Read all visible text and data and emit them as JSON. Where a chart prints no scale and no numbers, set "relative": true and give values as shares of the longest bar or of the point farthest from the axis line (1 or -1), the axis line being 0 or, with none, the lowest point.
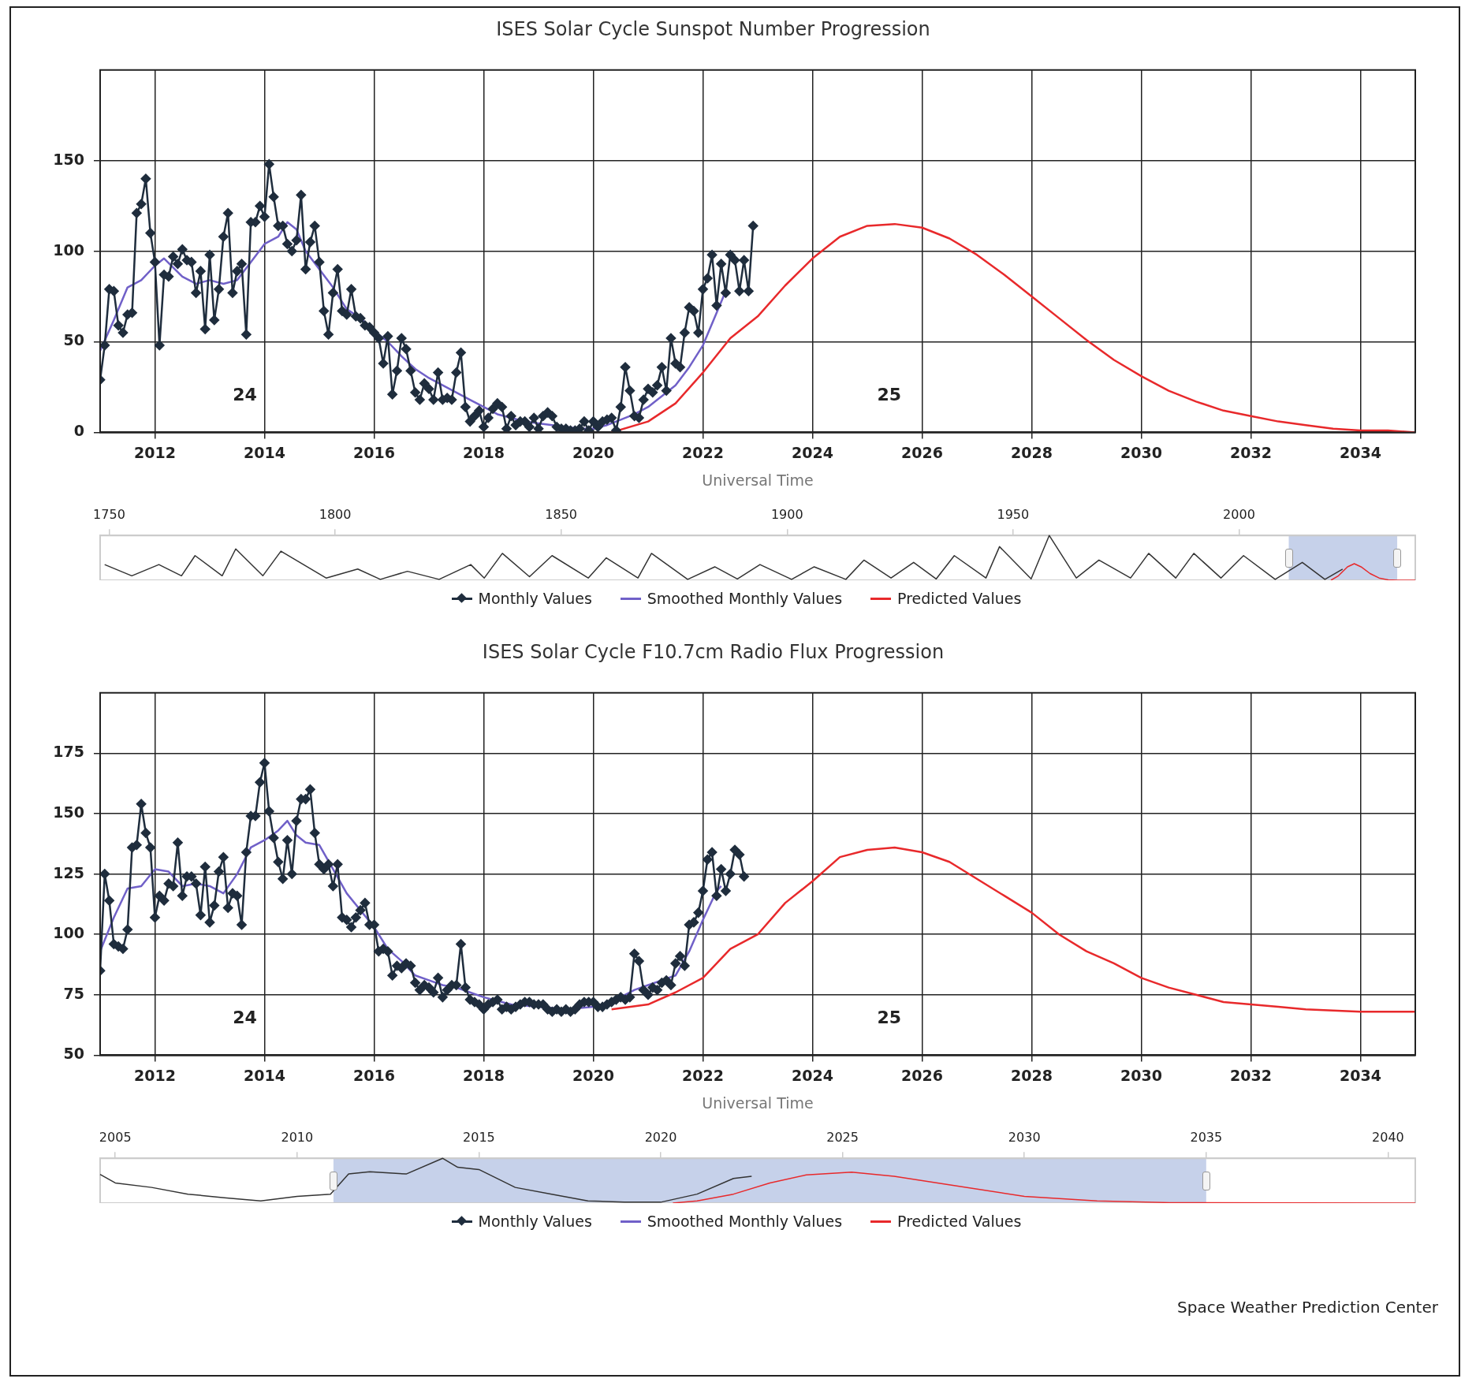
{
  "chart_data": [
    {
      "type": "line",
      "title": "ISES Solar Cycle Sunspot Number Progression",
      "xlabel": "Universal Time",
      "xlim": [
        "2011",
        "2035"
      ],
      "xticks": [
        "2012",
        "2014",
        "2016",
        "2018",
        "2020",
        "2022",
        "2024",
        "2026",
        "2028",
        "2030",
        "2032",
        "2034"
      ],
      "ylim": [
        0,
        200
      ],
      "yticks": [
        0,
        50,
        100,
        150
      ],
      "grid": true,
      "legend": "bottom",
      "annotations": [
        "24",
        "25"
      ],
      "series": [
        {
          "name": "Monthly Values",
          "color": "#1f2d3d",
          "marker": "diamond",
          "x": [
            "2011-01",
            "2011-02",
            "2011-03",
            "2011-04",
            "2011-05",
            "2011-06",
            "2011-07",
            "2011-08",
            "2011-09",
            "2011-10",
            "2011-11",
            "2011-12",
            "2012-01",
            "2012-02",
            "2012-03",
            "2012-04",
            "2012-05",
            "2012-06",
            "2012-07",
            "2012-08",
            "2012-09",
            "2012-10",
            "2012-11",
            "2012-12",
            "2013-01",
            "2013-02",
            "2013-03",
            "2013-04",
            "2013-05",
            "2013-06",
            "2013-07",
            "2013-08",
            "2013-09",
            "2013-10",
            "2013-11",
            "2013-12",
            "2014-01",
            "2014-02",
            "2014-03",
            "2014-04",
            "2014-05",
            "2014-06",
            "2014-07",
            "2014-08",
            "2014-09",
            "2014-10",
            "2014-11",
            "2014-12",
            "2015-01",
            "2015-02",
            "2015-03",
            "2015-04",
            "2015-05",
            "2015-06",
            "2015-07",
            "2015-08",
            "2015-09",
            "2015-10",
            "2015-11",
            "2015-12",
            "2016-01",
            "2016-02",
            "2016-03",
            "2016-04",
            "2016-05",
            "2016-06",
            "2016-07",
            "2016-08",
            "2016-09",
            "2016-10",
            "2016-11",
            "2016-12",
            "2017-01",
            "2017-02",
            "2017-03",
            "2017-04",
            "2017-05",
            "2017-06",
            "2017-07",
            "2017-08",
            "2017-09",
            "2017-10",
            "2017-11",
            "2017-12",
            "2018-01",
            "2018-02",
            "2018-03",
            "2018-04",
            "2018-05",
            "2018-06",
            "2018-07",
            "2018-08",
            "2018-09",
            "2018-10",
            "2018-11",
            "2018-12",
            "2019-01",
            "2019-02",
            "2019-03",
            "2019-04",
            "2019-05",
            "2019-06",
            "2019-07",
            "2019-08",
            "2019-09",
            "2019-10",
            "2019-11",
            "2019-12",
            "2020-01",
            "2020-02",
            "2020-03",
            "2020-04",
            "2020-05",
            "2020-06",
            "2020-07",
            "2020-08",
            "2020-09",
            "2020-10",
            "2020-11",
            "2020-12",
            "2021-01",
            "2021-02",
            "2021-03",
            "2021-04",
            "2021-05",
            "2021-06",
            "2021-07",
            "2021-08",
            "2021-09",
            "2021-10",
            "2021-11",
            "2021-12",
            "2022-01",
            "2022-02",
            "2022-03",
            "2022-04",
            "2022-05",
            "2022-06",
            "2022-07",
            "2022-08",
            "2022-09",
            "2022-10",
            "2022-11",
            "2022-12"
          ],
          "values": [
            29,
            48,
            79,
            78,
            59,
            55,
            65,
            66,
            121,
            126,
            140,
            110,
            94,
            48,
            87,
            86,
            97,
            93,
            101,
            95,
            94,
            77,
            89,
            57,
            98,
            62,
            79,
            108,
            121,
            77,
            89,
            93,
            54,
            116,
            116,
            125,
            119,
            148,
            130,
            114,
            114,
            104,
            100,
            106,
            131,
            90,
            105,
            114,
            94,
            67,
            54,
            77,
            90,
            67,
            65,
            79,
            64,
            63,
            59,
            58,
            55,
            52,
            38,
            53,
            21,
            34,
            52,
            46,
            34,
            22,
            18,
            27,
            24,
            18,
            33,
            18,
            19,
            18,
            33,
            44,
            14,
            6,
            9,
            12,
            3,
            8,
            13,
            16,
            14,
            2,
            9,
            4,
            6,
            6,
            3,
            8,
            2,
            9,
            11,
            9,
            3,
            2,
            2,
            1,
            1,
            2,
            6,
            1,
            6,
            3,
            6,
            7,
            8,
            1,
            14,
            36,
            23,
            9,
            8,
            18,
            24,
            22,
            26,
            36,
            23,
            52,
            38,
            36,
            55,
            69,
            67,
            55,
            79,
            85,
            98,
            70,
            93,
            77,
            98,
            95,
            78,
            95,
            78,
            114
          ]
        },
        {
          "name": "Smoothed Monthly Values",
          "color": "#7060c8",
          "x": [
            "2011-01",
            "2011-04",
            "2011-07",
            "2011-10",
            "2012-01",
            "2012-03",
            "2012-07",
            "2012-10",
            "2013-01",
            "2013-04",
            "2013-07",
            "2013-10",
            "2014-01",
            "2014-04",
            "2014-06",
            "2014-08",
            "2014-10",
            "2015-01",
            "2015-04",
            "2015-07",
            "2015-10",
            "2016-01",
            "2016-04",
            "2016-07",
            "2016-10",
            "2017-01",
            "2017-04",
            "2017-07",
            "2017-10",
            "2018-01",
            "2018-04",
            "2018-07",
            "2018-10",
            "2019-01",
            "2019-04",
            "2019-07",
            "2019-10",
            "2020-01",
            "2020-04",
            "2020-07",
            "2020-10",
            "2021-01",
            "2021-04",
            "2021-07",
            "2021-10",
            "2022-01",
            "2022-04",
            "2022-06"
          ],
          "values": [
            45,
            62,
            80,
            84,
            92,
            96,
            86,
            82,
            84,
            82,
            84,
            94,
            104,
            108,
            116,
            112,
            100,
            90,
            80,
            68,
            63,
            56,
            50,
            42,
            35,
            30,
            26,
            22,
            18,
            14,
            10,
            8,
            6,
            5,
            4,
            3,
            2,
            2,
            4,
            7,
            10,
            14,
            20,
            26,
            36,
            48,
            66,
            78
          ]
        },
        {
          "name": "Predicted Values",
          "color": "#e8292b",
          "x": [
            "2020-05",
            "2021-01",
            "2021-07",
            "2022-01",
            "2022-07",
            "2023-01",
            "2023-07",
            "2024-01",
            "2024-07",
            "2025-01",
            "2025-07",
            "2026-01",
            "2026-07",
            "2027-01",
            "2027-07",
            "2028-01",
            "2028-07",
            "2029-01",
            "2029-07",
            "2030-01",
            "2030-07",
            "2031-01",
            "2031-07",
            "2032-01",
            "2032-07",
            "2033-01",
            "2033-07",
            "2034-01",
            "2034-07",
            "2035-01"
          ],
          "values": [
            0,
            6,
            16,
            33,
            52,
            64,
            81,
            96,
            108,
            114,
            115,
            113,
            107,
            98,
            87,
            75,
            63,
            51,
            40,
            31,
            23,
            17,
            12,
            9,
            6,
            4,
            2,
            1,
            1,
            0
          ]
        }
      ]
    },
    {
      "type": "line",
      "relative": true,
      "tick_labels": "x",
      "xlim": [
        "1748",
        "2039"
      ],
      "xticks": [
        "1750",
        "1800",
        "1850",
        "1900",
        "1950",
        "2000"
      ],
      "legend": false,
      "bands": [
        {
          "axis": "x",
          "from": "2011",
          "to": "2035",
          "color": "#c6d1ea"
        }
      ],
      "series": [
        {
          "color": "#333333",
          "x": [
            "1749",
            "1755",
            "1761",
            "1766",
            "1769",
            "1775",
            "1778",
            "1784",
            "1788",
            "1798",
            "1805",
            "1810",
            "1816",
            "1823",
            "1830",
            "1833",
            "1837",
            "1843",
            "1848",
            "1856",
            "1860",
            "1867",
            "1870",
            "1878",
            "1884",
            "1889",
            "1894",
            "1901",
            "1906",
            "1913",
            "1917",
            "1923",
            "1928",
            "1933",
            "1937",
            "1944",
            "1947",
            "1954",
            "1958",
            "1964",
            "1969",
            "1976",
            "1980",
            "1986",
            "1990",
            "1996",
            "2001",
            "2008",
            "2014",
            "2019",
            "2022-12"
          ],
          "values": [
            0.35,
            0.1,
            0.35,
            0.1,
            0.55,
            0.1,
            0.7,
            0.1,
            0.65,
            0.05,
            0.25,
            0.02,
            0.2,
            0.02,
            0.35,
            0.05,
            0.6,
            0.08,
            0.55,
            0.05,
            0.5,
            0.05,
            0.6,
            0.02,
            0.3,
            0.03,
            0.35,
            0.02,
            0.3,
            0.02,
            0.45,
            0.05,
            0.4,
            0.03,
            0.55,
            0.05,
            0.75,
            0.03,
            1,
            0.05,
            0.45,
            0.05,
            0.6,
            0.05,
            0.6,
            0.05,
            0.55,
            0.02,
            0.4,
            0.02,
            0.25
          ]
        },
        {
          "color": "#e8292b",
          "x": [
            "2020-05",
            "2022",
            "2024",
            "2025-07",
            "2027",
            "2029",
            "2031",
            "2033",
            "2035",
            "2039"
          ],
          "values": [
            0,
            0.1,
            0.3,
            0.37,
            0.3,
            0.15,
            0.05,
            0.01,
            0,
            0
          ]
        }
      ]
    },
    {
      "type": "line",
      "title": "ISES Solar Cycle F10.7cm Radio Flux Progression",
      "xlabel": "Universal Time",
      "xlim": [
        "2011",
        "2035"
      ],
      "xticks": [
        "2012",
        "2014",
        "2016",
        "2018",
        "2020",
        "2022",
        "2024",
        "2026",
        "2028",
        "2030",
        "2032",
        "2034"
      ],
      "ylim": [
        50,
        200
      ],
      "yticks": [
        50,
        75,
        100,
        125,
        150,
        175
      ],
      "grid": true,
      "legend": "bottom",
      "annotations": [
        "24",
        "25"
      ],
      "series": [
        {
          "name": "Monthly Values",
          "color": "#1f2d3d",
          "marker": "diamond",
          "x": [
            "2011-01",
            "2011-02",
            "2011-03",
            "2011-04",
            "2011-05",
            "2011-06",
            "2011-07",
            "2011-08",
            "2011-09",
            "2011-10",
            "2011-11",
            "2011-12",
            "2012-01",
            "2012-02",
            "2012-03",
            "2012-04",
            "2012-05",
            "2012-06",
            "2012-07",
            "2012-08",
            "2012-09",
            "2012-10",
            "2012-11",
            "2012-12",
            "2013-01",
            "2013-02",
            "2013-03",
            "2013-04",
            "2013-05",
            "2013-06",
            "2013-07",
            "2013-08",
            "2013-09",
            "2013-10",
            "2013-11",
            "2013-12",
            "2014-01",
            "2014-02",
            "2014-03",
            "2014-04",
            "2014-05",
            "2014-06",
            "2014-07",
            "2014-08",
            "2014-09",
            "2014-10",
            "2014-11",
            "2014-12",
            "2015-01",
            "2015-02",
            "2015-03",
            "2015-04",
            "2015-05",
            "2015-06",
            "2015-07",
            "2015-08",
            "2015-09",
            "2015-10",
            "2015-11",
            "2015-12",
            "2016-01",
            "2016-02",
            "2016-03",
            "2016-04",
            "2016-05",
            "2016-06",
            "2016-07",
            "2016-08",
            "2016-09",
            "2016-10",
            "2016-11",
            "2016-12",
            "2017-01",
            "2017-02",
            "2017-03",
            "2017-04",
            "2017-05",
            "2017-06",
            "2017-07",
            "2017-08",
            "2017-09",
            "2017-10",
            "2017-11",
            "2017-12",
            "2018-01",
            "2018-02",
            "2018-03",
            "2018-04",
            "2018-05",
            "2018-06",
            "2018-07",
            "2018-08",
            "2018-09",
            "2018-10",
            "2018-11",
            "2018-12",
            "2019-01",
            "2019-02",
            "2019-03",
            "2019-04",
            "2019-05",
            "2019-06",
            "2019-07",
            "2019-08",
            "2019-09",
            "2019-10",
            "2019-11",
            "2019-12",
            "2020-01",
            "2020-02",
            "2020-03",
            "2020-04",
            "2020-05",
            "2020-06",
            "2020-07",
            "2020-08",
            "2020-09",
            "2020-10",
            "2020-11",
            "2020-12",
            "2021-01",
            "2021-02",
            "2021-03",
            "2021-04",
            "2021-05",
            "2021-06",
            "2021-07",
            "2021-08",
            "2021-09",
            "2021-10",
            "2021-11",
            "2021-12",
            "2022-01",
            "2022-02",
            "2022-03",
            "2022-04",
            "2022-05",
            "2022-06",
            "2022-07",
            "2022-08",
            "2022-09",
            "2022-10"
          ],
          "values": [
            85,
            125,
            114,
            96,
            95,
            94,
            102,
            136,
            137,
            154,
            142,
            136,
            107,
            116,
            114,
            121,
            120,
            138,
            116,
            124,
            124,
            121,
            108,
            128,
            105,
            112,
            126,
            132,
            111,
            117,
            116,
            104,
            134,
            149,
            149,
            163,
            171,
            151,
            140,
            130,
            123,
            139,
            125,
            147,
            156,
            156,
            160,
            142,
            129,
            127,
            129,
            120,
            129,
            107,
            106,
            103,
            107,
            110,
            113,
            104,
            104,
            93,
            94,
            93,
            83,
            87,
            86,
            88,
            87,
            80,
            77,
            79,
            78,
            76,
            82,
            74,
            77,
            79,
            79,
            96,
            78,
            73,
            72,
            71,
            69,
            71,
            72,
            73,
            69,
            70,
            69,
            70,
            71,
            72,
            72,
            71,
            71,
            71,
            69,
            68,
            69,
            68,
            69,
            68,
            69,
            71,
            72,
            72,
            72,
            70,
            70,
            71,
            72,
            73,
            74,
            73,
            74,
            92,
            89,
            77,
            75,
            78,
            77,
            80,
            81,
            79,
            88,
            91,
            87,
            104,
            105,
            109,
            118,
            131,
            134,
            116,
            127,
            118,
            125,
            135,
            133,
            124
          ]
        },
        {
          "name": "Smoothed Monthly Values",
          "color": "#7060c8",
          "x": [
            "2011-01",
            "2011-04",
            "2011-07",
            "2011-10",
            "2012-01",
            "2012-04",
            "2012-07",
            "2012-10",
            "2013-01",
            "2013-04",
            "2013-07",
            "2013-10",
            "2014-01",
            "2014-04",
            "2014-06",
            "2014-08",
            "2014-10",
            "2015-01",
            "2015-04",
            "2015-07",
            "2015-10",
            "2016-01",
            "2016-04",
            "2016-07",
            "2016-10",
            "2017-01",
            "2017-04",
            "2017-07",
            "2017-10",
            "2018-01",
            "2018-07",
            "2019-01",
            "2019-07",
            "2020-01",
            "2020-04",
            "2020-07",
            "2020-10",
            "2021-01",
            "2021-04",
            "2021-07",
            "2021-10",
            "2022-01",
            "2022-04",
            "2022-05"
          ],
          "values": [
            93,
            107,
            119,
            120,
            127,
            126,
            120,
            121,
            120,
            117,
            125,
            136,
            139,
            143,
            147,
            141,
            138,
            137,
            127,
            117,
            110,
            103,
            94,
            89,
            83,
            81,
            79,
            78,
            76,
            74,
            71,
            70,
            69,
            70,
            71,
            74,
            77,
            79,
            81,
            83,
            93,
            106,
            118,
            120
          ]
        },
        {
          "name": "Predicted Values",
          "color": "#e8292b",
          "x": [
            "2020-05",
            "2021-01",
            "2021-07",
            "2022-01",
            "2022-07",
            "2023-01",
            "2023-07",
            "2024-01",
            "2024-07",
            "2025-01",
            "2025-07",
            "2026-01",
            "2026-07",
            "2027-01",
            "2027-07",
            "2028-01",
            "2028-07",
            "2029-01",
            "2029-07",
            "2030-01",
            "2030-07",
            "2031-01",
            "2031-07",
            "2032-01",
            "2032-07",
            "2033-01",
            "2034-01",
            "2035-01"
          ],
          "values": [
            69,
            71,
            76,
            82,
            94,
            100,
            113,
            122,
            132,
            135,
            136,
            134,
            130,
            123,
            116,
            109,
            100,
            93,
            88,
            82,
            78,
            75,
            72,
            71,
            70,
            69,
            68,
            68
          ]
        }
      ]
    },
    {
      "type": "line",
      "relative": true,
      "tick_labels": "x",
      "annotations": [
        "Space Weather Prediction Center"
      ],
      "xlim": [
        "2004-08",
        "2040-10"
      ],
      "xticks": [
        "2005",
        "2010",
        "2015",
        "2020",
        "2025",
        "2030",
        "2035",
        "2040"
      ],
      "legend": false,
      "bands": [
        {
          "axis": "x",
          "from": "2011",
          "to": "2035",
          "color": "#c6d1ea"
        }
      ],
      "series": [
        {
          "color": "#333333",
          "x": [
            "2004-08",
            "2005",
            "2006",
            "2007",
            "2008",
            "2009",
            "2010",
            "2010-12",
            "2011-06",
            "2012",
            "2013",
            "2014",
            "2014-06",
            "2015",
            "2016",
            "2017",
            "2018",
            "2019",
            "2020",
            "2021",
            "2022",
            "2022-07"
          ],
          "values": [
            0.64,
            0.45,
            0.35,
            0.2,
            0.12,
            0.05,
            0.15,
            0.2,
            0.65,
            0.7,
            0.65,
            1,
            0.8,
            0.75,
            0.35,
            0.2,
            0.05,
            0.02,
            0.02,
            0.2,
            0.55,
            0.6
          ]
        },
        {
          "color": "#e8292b",
          "x": [
            "2020-05",
            "2021",
            "2022",
            "2023",
            "2024",
            "2025-04",
            "2026-06",
            "2028",
            "2030",
            "2032",
            "2034",
            "2040-10"
          ],
          "values": [
            0,
            0.05,
            0.2,
            0.45,
            0.63,
            0.69,
            0.6,
            0.4,
            0.15,
            0.05,
            0.01,
            0
          ]
        }
      ]
    }
  ]
}
